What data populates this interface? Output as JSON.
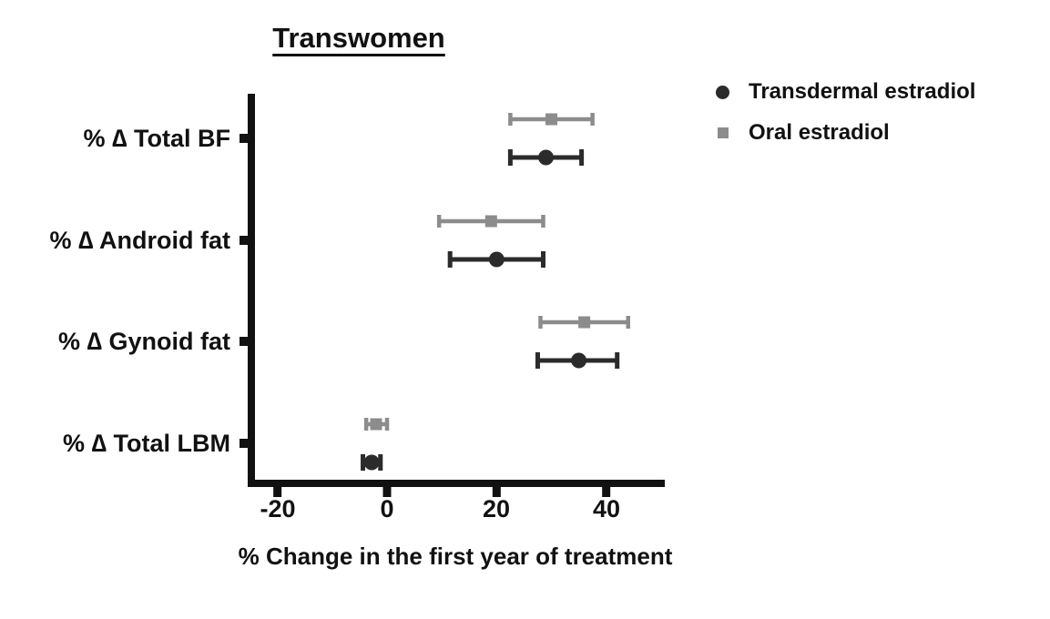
{
  "legend": {
    "items": [
      {
        "label": "Transdermal estradiol",
        "marker": "circle",
        "color": "#2b2b2b"
      },
      {
        "label": "Oral estradiol",
        "marker": "square",
        "color": "#8c8c8c"
      }
    ]
  },
  "chart_data": {
    "type": "scatter",
    "subtype": "forest-plot-horizontal-error-bars",
    "title": "Transwomen",
    "xlabel": "% Change in the first year of treatment",
    "xlim": [
      -25,
      50
    ],
    "xticks": [
      -20,
      0,
      20,
      40
    ],
    "grid": false,
    "legend_position": "top-right",
    "categories": [
      "% ∆ Total BF",
      "% ∆ Android fat",
      "% ∆ Gynoid fat",
      "% ∆ Total LBM"
    ],
    "series": [
      {
        "name": "Oral estradiol",
        "marker": "square",
        "color": "#8c8c8c",
        "values": [
          30,
          19,
          36,
          -2
        ],
        "ci_low": [
          22.5,
          9.5,
          28,
          -3.8
        ],
        "ci_high": [
          37.5,
          28.5,
          44,
          0
        ]
      },
      {
        "name": "Transdermal estradiol",
        "marker": "circle",
        "color": "#2b2b2b",
        "values": [
          29,
          20,
          35,
          -2.8
        ],
        "ci_low": [
          22.5,
          11.5,
          27.5,
          -4.4
        ],
        "ci_high": [
          35.5,
          28.5,
          42,
          -1.2
        ]
      }
    ],
    "axis_color": "#111111"
  }
}
